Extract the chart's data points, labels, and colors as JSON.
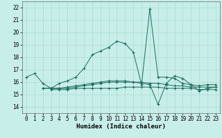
{
  "xlabel": "Humidex (Indice chaleur)",
  "bg_color": "#c8eeea",
  "grid_color": "#aadad4",
  "line_color": "#1a6b5a",
  "xlim": [
    -0.5,
    23.5
  ],
  "ylim": [
    13.5,
    22.5
  ],
  "yticks": [
    14,
    15,
    16,
    17,
    18,
    19,
    20,
    21,
    22
  ],
  "xticks": [
    0,
    1,
    2,
    3,
    4,
    5,
    6,
    7,
    8,
    9,
    10,
    11,
    12,
    13,
    14,
    15,
    16,
    17,
    18,
    19,
    20,
    21,
    22,
    23
  ],
  "series": [
    {
      "x": [
        0,
        1,
        2,
        3,
        4,
        5,
        6,
        7,
        8,
        9,
        10,
        11,
        12,
        13,
        14,
        15,
        16,
        17,
        18,
        19,
        20,
        21,
        22,
        23
      ],
      "y": [
        16.4,
        16.7,
        15.9,
        15.5,
        15.9,
        16.1,
        16.4,
        17.1,
        18.2,
        18.5,
        18.8,
        19.3,
        19.1,
        18.4,
        15.8,
        21.9,
        16.4,
        16.4,
        16.3,
        15.9,
        15.8,
        15.7,
        15.8,
        15.8
      ]
    },
    {
      "x": [
        2,
        3,
        4,
        5,
        6,
        7,
        8,
        9,
        10,
        11,
        12,
        13,
        14,
        15,
        16,
        17,
        18,
        19,
        20,
        21,
        22,
        23
      ],
      "y": [
        15.5,
        15.5,
        15.5,
        15.5,
        15.6,
        15.7,
        15.8,
        15.9,
        16.0,
        16.0,
        16.0,
        16.0,
        16.0,
        15.9,
        15.9,
        15.8,
        15.7,
        15.7,
        15.6,
        15.6,
        15.6,
        15.6
      ]
    },
    {
      "x": [
        2,
        3,
        4,
        5,
        6,
        7,
        8,
        9,
        10,
        11,
        12,
        13,
        14,
        15,
        16,
        17,
        18,
        19,
        20,
        21,
        22,
        23
      ],
      "y": [
        15.5,
        15.5,
        15.5,
        15.6,
        15.7,
        15.8,
        15.9,
        16.0,
        16.1,
        16.1,
        16.1,
        16.0,
        15.9,
        15.8,
        14.2,
        15.9,
        16.5,
        16.3,
        15.8,
        15.3,
        15.5,
        15.6
      ]
    },
    {
      "x": [
        3,
        4,
        5,
        6,
        7,
        8,
        9,
        10,
        11,
        12,
        13,
        14,
        15,
        16,
        17,
        18,
        19,
        20,
        21,
        22,
        23
      ],
      "y": [
        15.4,
        15.4,
        15.4,
        15.5,
        15.5,
        15.5,
        15.5,
        15.5,
        15.5,
        15.6,
        15.6,
        15.6,
        15.6,
        15.6,
        15.5,
        15.5,
        15.5,
        15.5,
        15.4,
        15.4,
        15.4
      ]
    }
  ]
}
